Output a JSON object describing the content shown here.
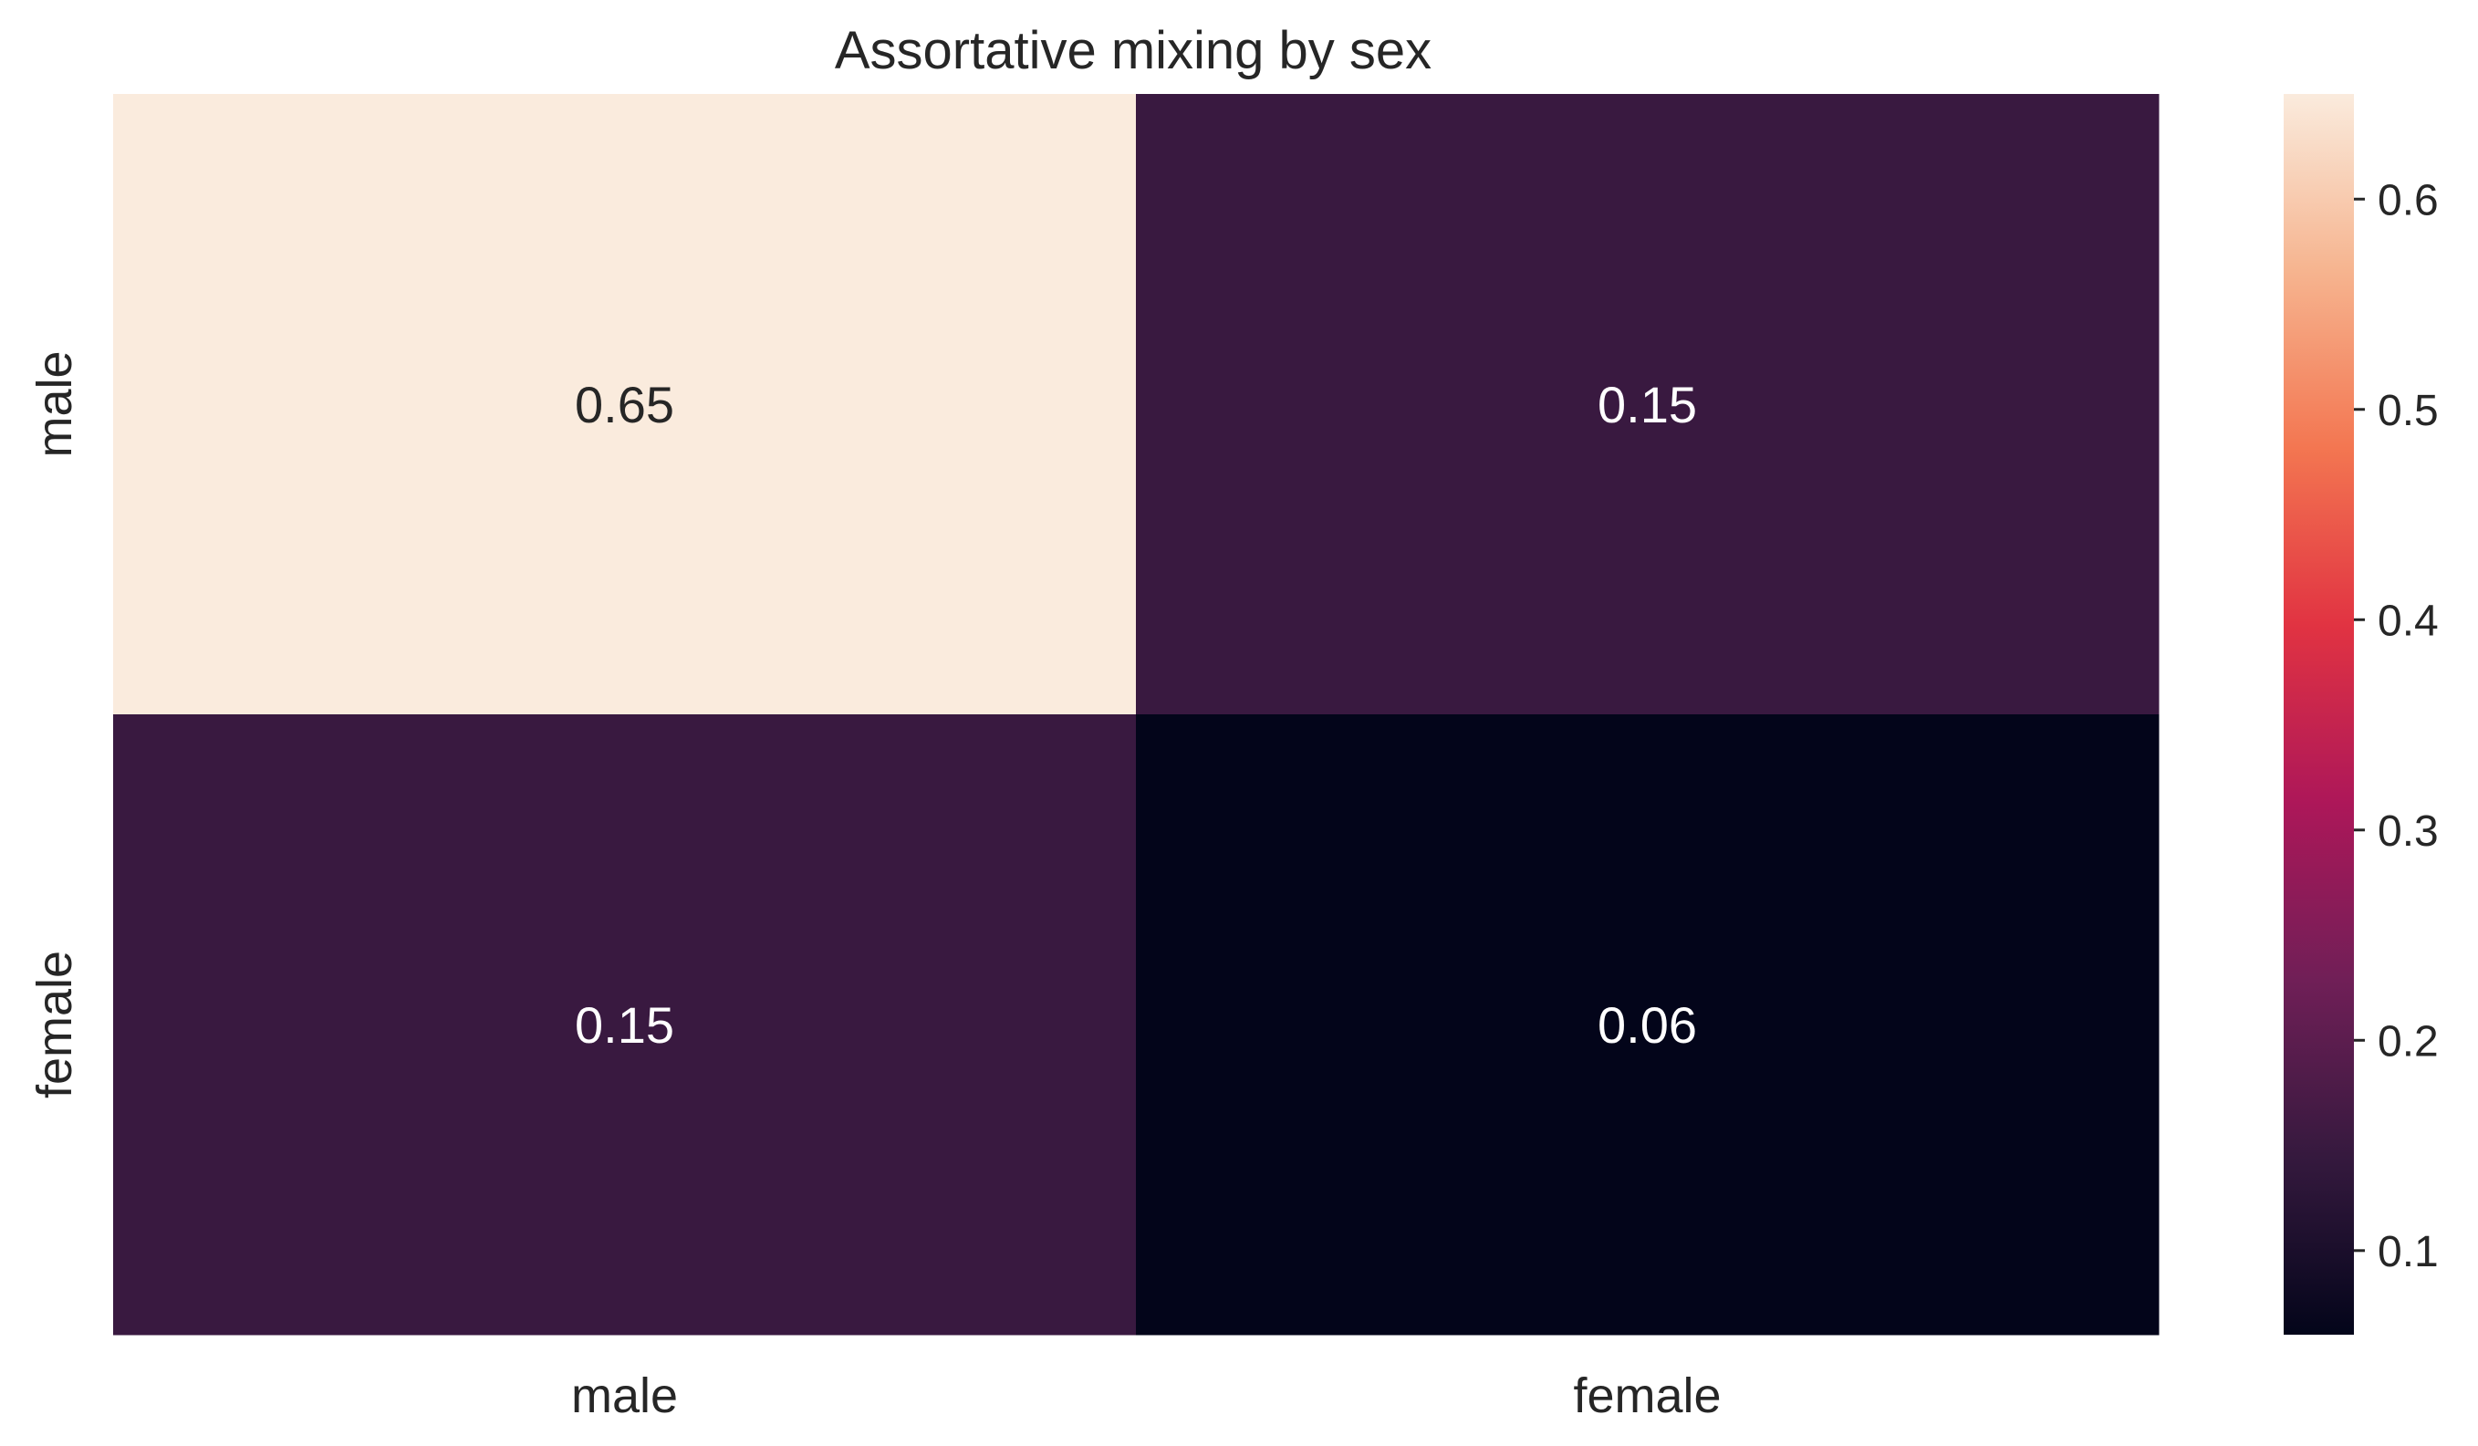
{
  "chart_data": {
    "type": "heatmap",
    "title": "Assortative mixing by sex",
    "rows": [
      "male",
      "female"
    ],
    "columns": [
      "male",
      "female"
    ],
    "values": [
      [
        0.65,
        0.15
      ],
      [
        0.15,
        0.06
      ]
    ],
    "cell_labels": [
      [
        "0.65",
        "0.15"
      ],
      [
        "0.15",
        "0.06"
      ]
    ],
    "colorbar": {
      "min": 0.06,
      "max": 0.65,
      "ticks": [
        0.1,
        0.2,
        0.3,
        0.4,
        0.5,
        0.6
      ],
      "tick_labels": [
        "0.1",
        "0.2",
        "0.3",
        "0.4",
        "0.5",
        "0.6"
      ],
      "colormap": "rocket",
      "colormap_stops": [
        "#03051a",
        "#35193e",
        "#701f57",
        "#ad1759",
        "#e13342",
        "#f37651",
        "#f6b48f",
        "#faebdd"
      ]
    },
    "grid": false
  }
}
